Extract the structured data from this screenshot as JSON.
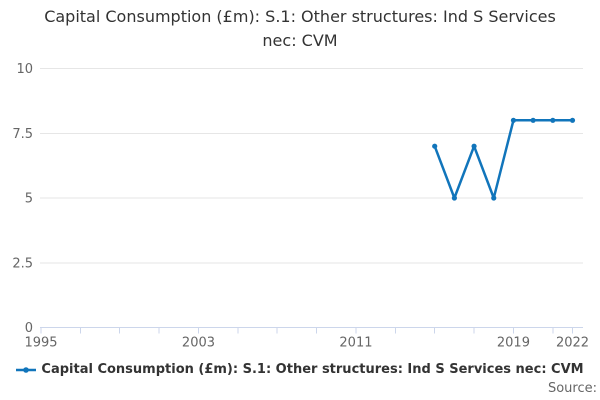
{
  "title": "Capital Consumption (£m): S.1: Other structures: Ind S Services nec: CVM",
  "legend": {
    "label": "Capital Consumption (£m): S.1: Other structures: Ind S Services nec: CVM"
  },
  "source_label": "Source:",
  "colors": {
    "series": "#1175bb",
    "grid": "#e6e6e6",
    "axis": "#ccd6eb",
    "tick_label": "#666666",
    "title_text": "#333333",
    "legend_text": "#333333",
    "source_text": "#666666"
  },
  "chart_data": {
    "type": "line",
    "title": "Capital Consumption (£m): S.1: Other structures: Ind S Services nec: CVM",
    "xlabel": "",
    "ylabel": "",
    "xlim": [
      1995,
      2022
    ],
    "ylim": [
      0,
      10
    ],
    "yticks": [
      0,
      2.5,
      5,
      7.5,
      10
    ],
    "ytick_labels": [
      "0",
      "2.5",
      "5",
      "7.5",
      "10"
    ],
    "xticks": [
      1995,
      1997,
      1999,
      2001,
      2003,
      2005,
      2007,
      2009,
      2011,
      2013,
      2015,
      2017,
      2019,
      2021,
      2022
    ],
    "xtick_labels": [
      "1995",
      "2003",
      "2011",
      "2019",
      "2022"
    ],
    "xtick_label_years": [
      1995,
      2003,
      2011,
      2019,
      2022
    ],
    "grid": "horizontal-only",
    "legend_position": "bottom",
    "series": [
      {
        "name": "Capital Consumption (£m): S.1: Other structures: Ind S Services nec: CVM",
        "color": "#1175bb",
        "x": [
          2015,
          2016,
          2017,
          2018,
          2019,
          2020,
          2021,
          2022
        ],
        "values": [
          7,
          5,
          7,
          5,
          8,
          8,
          8,
          8
        ]
      }
    ]
  }
}
